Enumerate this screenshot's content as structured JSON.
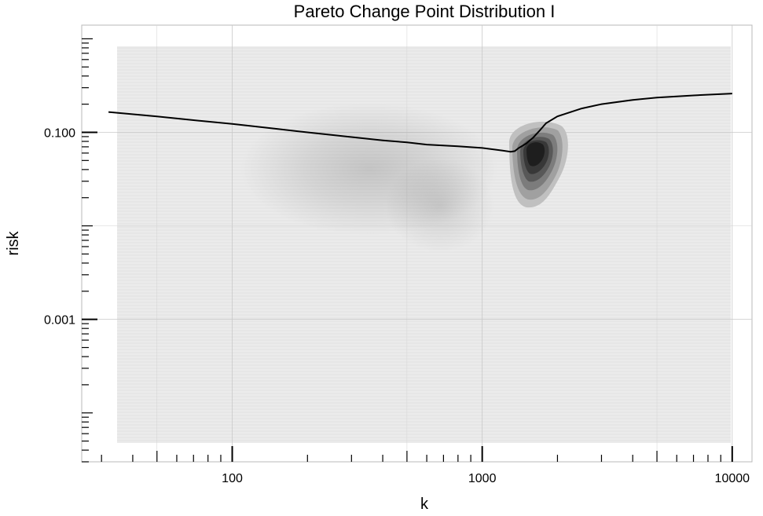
{
  "chart_data": {
    "type": "line",
    "title": "Pareto Change Point Distribution I",
    "xlabel": "k",
    "ylabel": "risk",
    "x_scale": "log",
    "y_scale": "log",
    "xlim": [
      25,
      12000
    ],
    "ylim": [
      3e-05,
      1.4
    ],
    "x_ticks": [
      100,
      1000,
      10000
    ],
    "x_tick_labels": [
      "100",
      "1000",
      "10000"
    ],
    "y_ticks": [
      0.001,
      0.1
    ],
    "y_tick_labels": [
      "0.001",
      "0.100"
    ],
    "grid": true,
    "legend": "none",
    "series": [
      {
        "x": [
          32,
          50,
          70,
          100,
          150,
          200,
          300,
          400,
          500,
          600,
          800,
          1000,
          1200,
          1300,
          1350,
          1400,
          1500,
          1600,
          1700,
          1800,
          2000,
          2500,
          3000,
          4000,
          5000,
          7000,
          10000
        ],
        "y": [
          0.165,
          0.148,
          0.135,
          0.123,
          0.109,
          0.1,
          0.089,
          0.082,
          0.078,
          0.074,
          0.071,
          0.068,
          0.064,
          0.062,
          0.063,
          0.068,
          0.076,
          0.088,
          0.105,
          0.125,
          0.148,
          0.18,
          0.2,
          0.222,
          0.235,
          0.248,
          0.26
        ]
      }
    ],
    "density": {
      "description": "2D density of change point locations",
      "faint_blob": {
        "x_center": 450,
        "y_center": 0.055
      },
      "dark_blob": {
        "x_center": 1620,
        "y_center": 0.095
      }
    },
    "colors": {
      "panel": "#ebebeb",
      "line": "#000000",
      "density_dark": "#1e1e1e"
    }
  }
}
